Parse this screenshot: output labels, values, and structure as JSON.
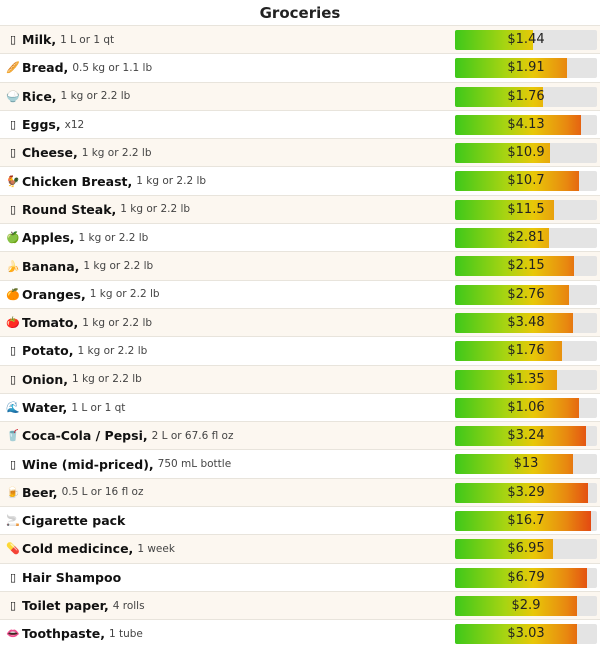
{
  "title": "Groceries",
  "items": [
    {
      "icon": "▯",
      "name": "Milk,",
      "detail": "1 L or 1 qt",
      "price": "$1.44",
      "level": 0.55
    },
    {
      "icon": "🥖",
      "name": "Bread,",
      "detail": "0.5 kg or 1.1 lb",
      "price": "$1.91",
      "level": 0.79
    },
    {
      "icon": "🍚",
      "name": "Rice,",
      "detail": "1 kg or 2.2 lb",
      "price": "$1.76",
      "level": 0.62
    },
    {
      "icon": "▯",
      "name": "Eggs,",
      "detail": "x12",
      "price": "$4.13",
      "level": 0.89
    },
    {
      "icon": "▯",
      "name": "Cheese,",
      "detail": "1 kg or 2.2 lb",
      "price": "$10.9",
      "level": 0.67
    },
    {
      "icon": "🐓",
      "name": "Chicken Breast,",
      "detail": "1 kg or 2.2 lb",
      "price": "$10.7",
      "level": 0.87
    },
    {
      "icon": "▯",
      "name": "Round Steak,",
      "detail": "1 kg or 2.2 lb",
      "price": "$11.5",
      "level": 0.7
    },
    {
      "icon": "🍏",
      "name": "Apples,",
      "detail": "1 kg or 2.2 lb",
      "price": "$2.81",
      "level": 0.66
    },
    {
      "icon": "🍌",
      "name": "Banana,",
      "detail": "1 kg or 2.2 lb",
      "price": "$2.15",
      "level": 0.84
    },
    {
      "icon": "🍊",
      "name": "Oranges,",
      "detail": "1 kg or 2.2 lb",
      "price": "$2.76",
      "level": 0.8
    },
    {
      "icon": "🍅",
      "name": "Tomato,",
      "detail": "1 kg or 2.2 lb",
      "price": "$3.48",
      "level": 0.83
    },
    {
      "icon": "▯",
      "name": "Potato,",
      "detail": "1 kg or 2.2 lb",
      "price": "$1.76",
      "level": 0.75
    },
    {
      "icon": "▯",
      "name": "Onion,",
      "detail": "1 kg or 2.2 lb",
      "price": "$1.35",
      "level": 0.72
    },
    {
      "icon": "🌊",
      "name": "Water,",
      "detail": "1 L or 1 qt",
      "price": "$1.06",
      "level": 0.87
    },
    {
      "icon": "🥤",
      "name": "Coca-Cola / Pepsi,",
      "detail": "2 L or 67.6 fl oz",
      "price": "$3.24",
      "level": 0.92
    },
    {
      "icon": "▯",
      "name": "Wine (mid-priced),",
      "detail": "750 mL bottle",
      "price": "$13",
      "level": 0.83
    },
    {
      "icon": "🍺",
      "name": "Beer,",
      "detail": "0.5 L or 16 fl oz",
      "price": "$3.29",
      "level": 0.94
    },
    {
      "icon": "🚬",
      "name": "Cigarette pack",
      "detail": "",
      "price": "$16.7",
      "level": 0.96
    },
    {
      "icon": "💊",
      "name": "Cold medicince,",
      "detail": "1 week",
      "price": "$6.95",
      "level": 0.69
    },
    {
      "icon": "▯",
      "name": "Hair Shampoo",
      "detail": "",
      "price": "$6.79",
      "level": 0.93
    },
    {
      "icon": "▯",
      "name": "Toilet paper,",
      "detail": "4 rolls",
      "price": "$2.9",
      "level": 0.86
    },
    {
      "icon": "👄",
      "name": "Toothpaste,",
      "detail": "1 tube",
      "price": "$3.03",
      "level": 0.86
    }
  ]
}
